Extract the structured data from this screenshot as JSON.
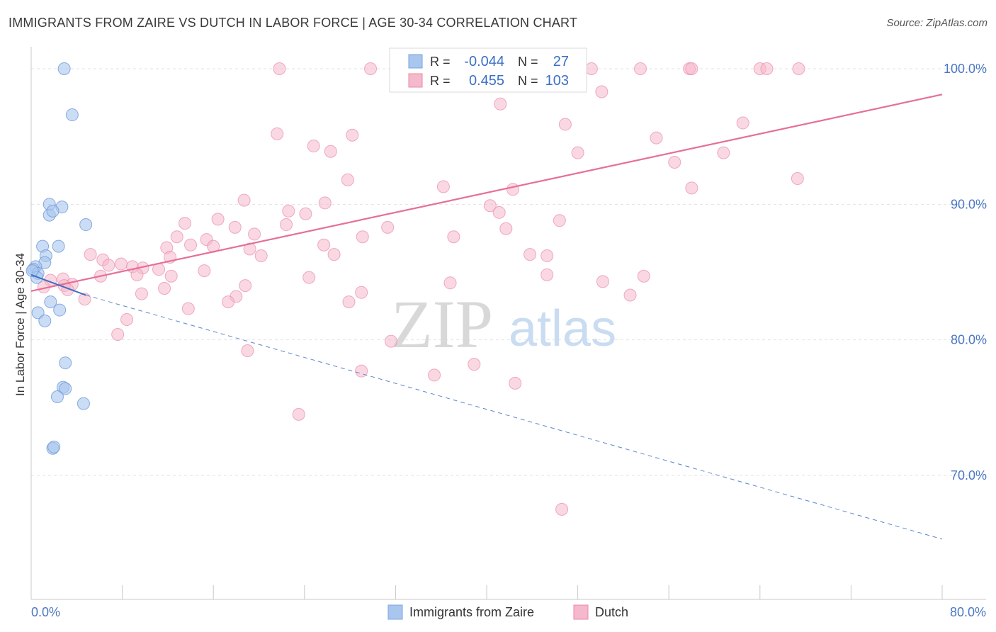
{
  "title": "IMMIGRANTS FROM ZAIRE VS DUTCH IN LABOR FORCE | AGE 30-34 CORRELATION CHART",
  "source": "Source: ZipAtlas.com",
  "watermark": {
    "zip": "ZIP",
    "atlas": "atlas"
  },
  "legend_top": {
    "rows": [
      {
        "r_label": "R =",
        "r_value": "-0.044",
        "n_label": "N =",
        "n_value": "27",
        "color": "#a9c6ee"
      },
      {
        "r_label": "R =",
        "r_value": "0.455",
        "n_label": "N =",
        "n_value": "103",
        "color": "#f6b8cb"
      }
    ]
  },
  "legend_bottom": [
    {
      "label": "Immigrants from Zaire",
      "color": "#a9c6ee"
    },
    {
      "label": "Dutch",
      "color": "#f6b8cb"
    }
  ],
  "chart_data": {
    "type": "scatter",
    "title": "IMMIGRANTS FROM ZAIRE VS DUTCH IN LABOR FORCE | AGE 30-34 CORRELATION CHART",
    "xlabel": "",
    "ylabel": "In Labor Force | Age 30-34",
    "xlim": [
      0,
      80
    ],
    "ylim": [
      62,
      101.5
    ],
    "x_tick_labels": [
      "0.0%",
      "80.0%"
    ],
    "y_ticks": [
      70,
      80,
      90,
      100
    ],
    "y_tick_labels": [
      "70.0%",
      "80.0%",
      "90.0%",
      "100.0%"
    ],
    "grid": true,
    "series": [
      {
        "name": "Immigrants from Zaire",
        "color": "#7aa3e0",
        "fill": "#a9c6ee",
        "trend": {
          "x": [
            0,
            4.8
          ],
          "y": [
            84.8,
            83.3
          ],
          "dashed_extension": {
            "x": [
              4.8,
              80
            ],
            "y": [
              83.3,
              65.3
            ]
          }
        },
        "points": [
          [
            2.9,
            100
          ],
          [
            3.6,
            96.6
          ],
          [
            1.6,
            90
          ],
          [
            2.7,
            89.8
          ],
          [
            1.6,
            89.2
          ],
          [
            1.9,
            89.5
          ],
          [
            4.8,
            88.5
          ],
          [
            1.0,
            86.9
          ],
          [
            2.4,
            86.9
          ],
          [
            1.3,
            86.2
          ],
          [
            1.2,
            85.7
          ],
          [
            0.4,
            85.4
          ],
          [
            0.2,
            85.2
          ],
          [
            0.6,
            84.9
          ],
          [
            0.5,
            84.6
          ],
          [
            1.7,
            82.8
          ],
          [
            2.5,
            82.2
          ],
          [
            0.6,
            82
          ],
          [
            1.2,
            81.4
          ],
          [
            3.0,
            78.3
          ],
          [
            2.8,
            76.5
          ],
          [
            3.0,
            76.4
          ],
          [
            2.3,
            75.8
          ],
          [
            4.6,
            75.3
          ],
          [
            1.9,
            72
          ],
          [
            2.0,
            72.1
          ],
          [
            0.1,
            85.1
          ]
        ]
      },
      {
        "name": "Dutch",
        "color": "#e56f97",
        "fill": "#f6b8cb",
        "trend": {
          "x": [
            0,
            80
          ],
          "y": [
            83.6,
            98.1
          ]
        },
        "points": [
          [
            21.8,
            100
          ],
          [
            29.8,
            100
          ],
          [
            32.3,
            100
          ],
          [
            33.0,
            100
          ],
          [
            38.0,
            100
          ],
          [
            40.7,
            100
          ],
          [
            45.4,
            100
          ],
          [
            45.0,
            100
          ],
          [
            47.5,
            100
          ],
          [
            49.2,
            100
          ],
          [
            53.5,
            100
          ],
          [
            57.8,
            100
          ],
          [
            58.0,
            100
          ],
          [
            64.0,
            100
          ],
          [
            64.6,
            100
          ],
          [
            67.4,
            100
          ],
          [
            50.1,
            98.3
          ],
          [
            41.2,
            97.4
          ],
          [
            62.5,
            96.0
          ],
          [
            46.9,
            95.9
          ],
          [
            21.6,
            95.2
          ],
          [
            28.2,
            95.1
          ],
          [
            54.9,
            94.9
          ],
          [
            24.8,
            94.3
          ],
          [
            26.3,
            93.9
          ],
          [
            48.0,
            93.8
          ],
          [
            60.8,
            93.8
          ],
          [
            56.5,
            93.1
          ],
          [
            67.3,
            91.9
          ],
          [
            27.8,
            91.8
          ],
          [
            36.2,
            91.3
          ],
          [
            42.3,
            91.1
          ],
          [
            58.0,
            91.2
          ],
          [
            18.7,
            90.3
          ],
          [
            25.8,
            90.1
          ],
          [
            40.3,
            89.9
          ],
          [
            22.6,
            89.5
          ],
          [
            24.1,
            89.3
          ],
          [
            41.1,
            89.4
          ],
          [
            16.4,
            88.9
          ],
          [
            46.4,
            88.8
          ],
          [
            13.5,
            88.6
          ],
          [
            22.4,
            88.5
          ],
          [
            31.3,
            88.3
          ],
          [
            17.9,
            88.3
          ],
          [
            41.7,
            88.2
          ],
          [
            19.6,
            87.8
          ],
          [
            12.8,
            87.6
          ],
          [
            29.1,
            87.6
          ],
          [
            37.1,
            87.6
          ],
          [
            15.4,
            87.4
          ],
          [
            14.0,
            87.0
          ],
          [
            16.0,
            86.9
          ],
          [
            11.9,
            86.8
          ],
          [
            25.7,
            87.0
          ],
          [
            19.2,
            86.7
          ],
          [
            26.6,
            86.3
          ],
          [
            20.2,
            86.2
          ],
          [
            43.8,
            86.3
          ],
          [
            45.3,
            86.2
          ],
          [
            5.2,
            86.3
          ],
          [
            12.2,
            86.1
          ],
          [
            6.3,
            85.9
          ],
          [
            6.8,
            85.5
          ],
          [
            7.9,
            85.6
          ],
          [
            8.9,
            85.4
          ],
          [
            9.8,
            85.3
          ],
          [
            11.2,
            85.2
          ],
          [
            15.2,
            85.1
          ],
          [
            9.3,
            84.8
          ],
          [
            6.1,
            84.7
          ],
          [
            12.3,
            84.7
          ],
          [
            24.4,
            84.6
          ],
          [
            45.3,
            84.8
          ],
          [
            53.8,
            84.7
          ],
          [
            2.8,
            84.5
          ],
          [
            1.7,
            84.4
          ],
          [
            3.6,
            84.1
          ],
          [
            2.9,
            84.0
          ],
          [
            1.1,
            83.9
          ],
          [
            3.2,
            83.7
          ],
          [
            36.8,
            84.2
          ],
          [
            18.8,
            84.0
          ],
          [
            11.7,
            83.8
          ],
          [
            9.7,
            83.4
          ],
          [
            29.0,
            83.5
          ],
          [
            18.0,
            83.2
          ],
          [
            4.7,
            83.0
          ],
          [
            17.3,
            82.8
          ],
          [
            13.8,
            82.3
          ],
          [
            27.9,
            82.8
          ],
          [
            52.6,
            83.3
          ],
          [
            50.2,
            84.3
          ],
          [
            8.4,
            81.5
          ],
          [
            7.6,
            80.4
          ],
          [
            31.6,
            79.9
          ],
          [
            38.9,
            78.2
          ],
          [
            19.0,
            79.2
          ],
          [
            29.0,
            77.7
          ],
          [
            35.4,
            77.4
          ],
          [
            42.5,
            76.8
          ],
          [
            23.5,
            74.5
          ],
          [
            46.6,
            67.5
          ]
        ]
      }
    ]
  }
}
